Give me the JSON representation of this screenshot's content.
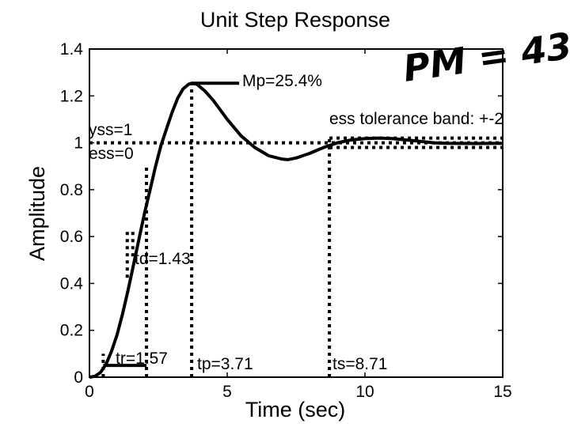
{
  "chart_data": {
    "type": "line",
    "title": "Unit Step Response",
    "xlabel": "Time (sec)",
    "ylabel": "Amplitude",
    "xlim": [
      0,
      15
    ],
    "ylim": [
      0,
      1.4
    ],
    "xticks": [
      0,
      5,
      10,
      15
    ],
    "xtick_labels": [
      "0",
      "5",
      "10",
      "15"
    ],
    "yticks": [
      0,
      0.2,
      0.4,
      0.6,
      0.8,
      1,
      1.2,
      1.4
    ],
    "ytick_labels": [
      "0",
      "0.2",
      "0.4",
      "0.6",
      "0.8",
      "1",
      "1.2",
      "1.4"
    ],
    "grid": false,
    "series": [
      {
        "x": [
          0,
          0.2,
          0.4,
          0.6,
          0.8,
          1.0,
          1.2,
          1.4,
          1.6,
          1.8,
          2.0,
          2.2,
          2.4,
          2.6,
          2.8,
          3.0,
          3.2,
          3.4,
          3.6,
          3.71,
          3.9,
          4.2,
          4.5,
          5.0,
          5.5,
          6.0,
          6.5,
          7.0,
          7.2,
          7.5,
          8.0,
          8.5,
          9.0,
          9.5,
          10.0,
          10.5,
          11.0,
          11.5,
          12.0,
          12.5,
          13.0,
          14.0,
          15.0
        ],
        "y": [
          0,
          0.004,
          0.02,
          0.055,
          0.11,
          0.18,
          0.27,
          0.37,
          0.48,
          0.59,
          0.7,
          0.8,
          0.9,
          0.99,
          1.06,
          1.13,
          1.19,
          1.23,
          1.25,
          1.254,
          1.25,
          1.22,
          1.18,
          1.1,
          1.03,
          0.98,
          0.945,
          0.93,
          0.928,
          0.935,
          0.955,
          0.98,
          1.0,
          1.012,
          1.018,
          1.02,
          1.018,
          1.012,
          1.006,
          1.0,
          0.998,
          0.997,
          0.998
        ]
      }
    ],
    "reference_lines": {
      "yss": 1,
      "tolerance_band": [
        0.98,
        1.02
      ],
      "td": 1.43,
      "tr_start": 0.5,
      "tr_end": 2.07,
      "tp": 3.71,
      "ts": 8.71,
      "mp_peak": 1.254
    },
    "annotations": {
      "mp": "Mp=25.4%",
      "ess_band": "ess tolerance band: +-2",
      "yss": "yss=1",
      "ess": "ess=0",
      "td": "td=1.43",
      "tr": "tr=1.57",
      "tp": "tp=3.71",
      "ts": "ts=8.71"
    },
    "handwritten_note": "PM = 43°"
  }
}
